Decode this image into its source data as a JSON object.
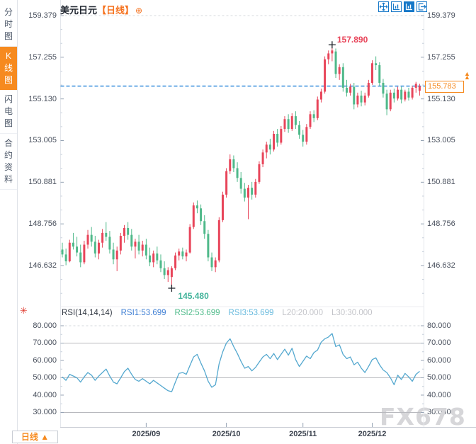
{
  "colors": {
    "up": "#e8455a",
    "down": "#4fb98a",
    "accent_orange": "#f68a1f",
    "title_tag_orange": "#f5711d",
    "toolbar_blue": "#1678c8",
    "dashed_line_blue": "#1e80d8",
    "rsi_line": "#54a8cf",
    "rsi1": "#3f7fd4",
    "rsi2": "#4fbb8a",
    "rsi3": "#66b9dd",
    "muted": "#c3c4c9",
    "high_text": "#e8455a",
    "low_text": "#41b39a"
  },
  "sidebar": {
    "items": [
      {
        "label": "分时图",
        "active": false
      },
      {
        "label": "K线图",
        "active": true
      },
      {
        "label": "闪电图",
        "active": false
      },
      {
        "label": "合约资料",
        "active": false
      }
    ]
  },
  "header": {
    "symbol": "美元日元",
    "period_tag": "【日线】",
    "add_icon": "⊕"
  },
  "toolbar": {
    "icons": [
      "pan",
      "axis-zoom",
      "axis-zoom-active",
      "exit"
    ]
  },
  "main_chart": {
    "y_labels": [
      "159.379",
      "157.255",
      "155.130",
      "153.005",
      "150.881",
      "148.756",
      "146.632"
    ],
    "high_label": "157.890",
    "low_label": "145.480",
    "last_price": "155.783",
    "price_arrow": "▲\n▲"
  },
  "rsi_panel": {
    "title": "RSI(14,14,14)",
    "items": [
      {
        "text": "RSI1:53.699",
        "color_key": "rsi1"
      },
      {
        "text": "RSI2:53.699",
        "color_key": "rsi2"
      },
      {
        "text": "RSI3:53.699",
        "color_key": "rsi3"
      },
      {
        "text": "L20:20.000",
        "color_key": "muted"
      },
      {
        "text": "L30:30.000",
        "color_key": "muted"
      }
    ],
    "y_labels": [
      "80.000",
      "70.000",
      "60.000",
      "50.000",
      "40.000",
      "30.000"
    ]
  },
  "x_axis": {
    "labels": [
      "2025/09",
      "2025/10",
      "2025/11",
      "2025/12"
    ]
  },
  "bottom_tab": {
    "label": "日线 ▲"
  },
  "watermark": "FX678",
  "chart_data": {
    "type": "candlestick",
    "symbol": "美元日元",
    "interval": "日线",
    "price_axis": [
      159.379,
      157.255,
      155.13,
      153.005,
      150.881,
      148.756,
      146.632
    ],
    "x_labels": [
      "2025/09",
      "2025/10",
      "2025/11",
      "2025/12"
    ],
    "x_label_indices": [
      23,
      45,
      66,
      85
    ],
    "high": 157.89,
    "low": 145.48,
    "last": 155.783,
    "candles": [
      [
        147.45,
        147.8,
        147.05,
        147.2
      ],
      [
        147.2,
        147.5,
        146.65,
        146.85
      ],
      [
        146.85,
        147.95,
        146.8,
        147.8
      ],
      [
        147.8,
        148.3,
        147.45,
        147.6
      ],
      [
        147.6,
        148.1,
        147.1,
        147.3
      ],
      [
        147.3,
        147.7,
        146.55,
        146.8
      ],
      [
        146.8,
        147.9,
        146.7,
        147.7
      ],
      [
        147.7,
        148.45,
        147.5,
        148.2
      ],
      [
        148.2,
        148.6,
        147.6,
        147.85
      ],
      [
        147.85,
        148.15,
        147.05,
        147.25
      ],
      [
        147.25,
        147.95,
        146.95,
        147.8
      ],
      [
        147.8,
        148.5,
        147.55,
        148.3
      ],
      [
        148.3,
        148.85,
        147.9,
        148.1
      ],
      [
        148.1,
        148.4,
        147.25,
        147.45
      ],
      [
        147.45,
        147.8,
        146.7,
        146.95
      ],
      [
        146.95,
        147.6,
        146.35,
        147.4
      ],
      [
        147.4,
        148.3,
        147.2,
        148.15
      ],
      [
        148.15,
        148.7,
        147.8,
        148.55
      ],
      [
        148.55,
        148.85,
        147.95,
        148.2
      ],
      [
        148.2,
        148.5,
        147.4,
        147.6
      ],
      [
        147.6,
        148.0,
        147.0,
        147.85
      ],
      [
        147.85,
        148.2,
        147.2,
        147.4
      ],
      [
        147.4,
        147.9,
        147.1,
        147.7
      ],
      [
        147.7,
        148.0,
        146.95,
        147.15
      ],
      [
        147.15,
        147.55,
        146.6,
        146.8
      ],
      [
        146.8,
        147.4,
        146.55,
        147.25
      ],
      [
        147.25,
        147.6,
        146.7,
        146.9
      ],
      [
        146.9,
        147.2,
        146.3,
        146.5
      ],
      [
        146.5,
        146.85,
        145.95,
        146.15
      ],
      [
        146.15,
        146.55,
        145.8,
        146.4
      ],
      [
        146.05,
        146.6,
        145.48,
        146.5
      ],
      [
        146.5,
        147.3,
        146.4,
        147.15
      ],
      [
        147.15,
        147.5,
        146.9,
        147.35
      ],
      [
        147.35,
        147.55,
        146.95,
        147.1
      ],
      [
        147.1,
        147.45,
        146.85,
        147.3
      ],
      [
        147.3,
        148.75,
        147.25,
        148.6
      ],
      [
        148.6,
        149.85,
        148.5,
        149.7
      ],
      [
        149.7,
        149.95,
        149.3,
        149.55
      ],
      [
        149.55,
        149.75,
        148.7,
        148.9
      ],
      [
        148.9,
        149.2,
        148.0,
        148.25
      ],
      [
        148.25,
        148.45,
        146.85,
        147.05
      ],
      [
        147.05,
        147.3,
        146.35,
        146.55
      ],
      [
        146.55,
        147.05,
        146.3,
        146.9
      ],
      [
        146.9,
        149.1,
        146.8,
        148.95
      ],
      [
        148.95,
        150.4,
        148.85,
        150.25
      ],
      [
        150.25,
        151.6,
        150.1,
        151.45
      ],
      [
        151.45,
        152.3,
        151.3,
        152.05
      ],
      [
        152.05,
        152.25,
        151.4,
        151.6
      ],
      [
        151.6,
        151.9,
        150.9,
        151.1
      ],
      [
        151.1,
        151.4,
        150.3,
        150.55
      ],
      [
        150.55,
        150.85,
        149.9,
        150.1
      ],
      [
        150.1,
        150.75,
        149.0,
        150.6
      ],
      [
        150.6,
        150.9,
        150.0,
        150.25
      ],
      [
        150.25,
        151.05,
        150.1,
        150.9
      ],
      [
        150.9,
        151.95,
        150.8,
        151.8
      ],
      [
        151.8,
        152.55,
        151.65,
        152.4
      ],
      [
        152.4,
        152.95,
        152.1,
        152.8
      ],
      [
        152.8,
        153.1,
        152.3,
        152.55
      ],
      [
        152.55,
        153.5,
        152.45,
        153.35
      ],
      [
        153.35,
        153.6,
        152.7,
        152.9
      ],
      [
        152.9,
        153.75,
        152.8,
        153.6
      ],
      [
        153.6,
        154.25,
        153.45,
        154.1
      ],
      [
        154.1,
        154.35,
        153.4,
        153.6
      ],
      [
        153.6,
        154.4,
        153.5,
        154.25
      ],
      [
        154.25,
        154.5,
        153.6,
        153.8
      ],
      [
        153.8,
        154.0,
        153.1,
        153.3
      ],
      [
        153.3,
        153.55,
        152.7,
        152.95
      ],
      [
        152.95,
        153.85,
        152.8,
        153.7
      ],
      [
        153.7,
        154.5,
        153.6,
        154.35
      ],
      [
        154.35,
        154.55,
        153.95,
        154.15
      ],
      [
        154.15,
        155.25,
        154.05,
        155.1
      ],
      [
        155.1,
        155.65,
        154.95,
        155.5
      ],
      [
        155.5,
        157.3,
        155.4,
        157.15
      ],
      [
        157.15,
        157.6,
        156.9,
        157.45
      ],
      [
        157.45,
        157.89,
        157.05,
        157.6
      ],
      [
        157.55,
        157.7,
        156.2,
        156.4
      ],
      [
        156.4,
        156.9,
        156.1,
        156.75
      ],
      [
        156.75,
        156.95,
        155.5,
        155.7
      ],
      [
        155.7,
        156.1,
        155.25,
        155.45
      ],
      [
        155.45,
        155.9,
        155.3,
        155.75
      ],
      [
        155.75,
        155.95,
        154.6,
        154.85
      ],
      [
        154.85,
        155.45,
        154.7,
        155.3
      ],
      [
        155.3,
        155.55,
        154.75,
        154.95
      ],
      [
        154.95,
        155.45,
        154.8,
        155.3
      ],
      [
        155.3,
        156.1,
        155.2,
        155.95
      ],
      [
        155.95,
        157.1,
        155.85,
        156.95
      ],
      [
        156.95,
        157.3,
        156.6,
        156.85
      ],
      [
        156.85,
        157.0,
        155.8,
        155.95
      ],
      [
        155.95,
        156.15,
        155.2,
        155.4
      ],
      [
        155.4,
        155.6,
        154.3,
        154.6
      ],
      [
        154.6,
        155.6,
        154.5,
        155.45
      ],
      [
        155.45,
        155.65,
        154.95,
        155.15
      ],
      [
        155.15,
        155.75,
        155.05,
        155.6
      ],
      [
        155.6,
        155.75,
        154.9,
        155.1
      ],
      [
        155.1,
        155.6,
        155.0,
        155.5
      ],
      [
        155.5,
        155.7,
        155.05,
        155.2
      ],
      [
        155.2,
        155.8,
        155.1,
        155.7
      ],
      [
        155.7,
        156.0,
        155.45,
        155.9
      ],
      [
        155.55,
        155.9,
        155.3,
        155.783
      ]
    ],
    "rsi": {
      "type": "line",
      "params": "RSI(14,14,14)",
      "rsi1": 53.699,
      "rsi2": 53.699,
      "rsi3": 53.699,
      "levels": {
        "L20": 20.0,
        "L30": 30.0,
        "grid": [
          70,
          50,
          30
        ]
      },
      "axis": [
        80,
        70,
        60,
        50,
        40,
        30
      ],
      "values": [
        50.5,
        48.5,
        52.0,
        51.0,
        50.0,
        47.5,
        50.5,
        53.0,
        51.5,
        48.5,
        51.0,
        53.0,
        55.0,
        51.0,
        47.5,
        46.5,
        50.0,
        53.5,
        55.5,
        52.0,
        49.0,
        48.0,
        49.5,
        48.0,
        46.5,
        48.5,
        47.0,
        45.5,
        44.0,
        42.5,
        42.0,
        47.5,
        52.5,
        53.0,
        52.0,
        57.0,
        62.0,
        63.5,
        58.5,
        54.0,
        48.0,
        44.5,
        46.0,
        58.0,
        65.0,
        70.0,
        72.5,
        68.0,
        64.0,
        59.5,
        55.5,
        56.5,
        54.0,
        56.0,
        59.0,
        62.0,
        63.5,
        61.0,
        64.0,
        60.5,
        63.5,
        66.5,
        63.0,
        67.0,
        60.5,
        56.5,
        59.5,
        62.5,
        61.0,
        64.5,
        66.0,
        70.5,
        72.5,
        73.5,
        75.5,
        68.0,
        69.0,
        63.5,
        61.0,
        62.0,
        57.5,
        59.0,
        55.5,
        53.0,
        56.5,
        60.5,
        61.5,
        57.5,
        54.5,
        53.0,
        50.0,
        46.0,
        51.5,
        49.0,
        52.5,
        50.5,
        48.0,
        52.0,
        53.699
      ]
    }
  }
}
